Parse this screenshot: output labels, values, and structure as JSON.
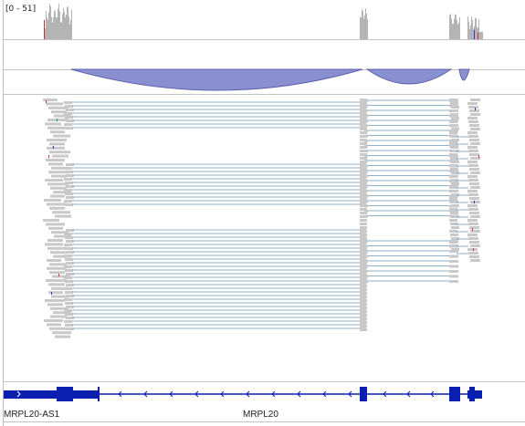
{
  "coverage_track": {
    "range_label": "[0 - 51]",
    "bar_color": "#b4b4b4",
    "mismatch_colors": [
      "#d03030",
      "#2040c0",
      "#30a030"
    ]
  },
  "junction_track": {
    "arc_color": "#8a8fcf",
    "arc_stroke": "#5c62b0"
  },
  "alignment_track": {
    "read_color": "#c9c9c9",
    "split_line_color": "#8fb2c8"
  },
  "gene_track": {
    "feature_color": "#0a1fb0",
    "genes": [
      {
        "name": "MRPL20-AS1"
      },
      {
        "name": "MRPL20"
      }
    ]
  }
}
